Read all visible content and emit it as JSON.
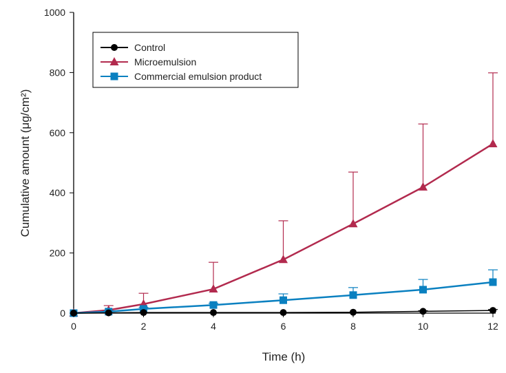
{
  "chart_data": {
    "type": "line",
    "title": "",
    "xlabel": "Time (h)",
    "ylabel": "Cumulative amount (μg/cm²)",
    "xlim": [
      0,
      12
    ],
    "ylim": [
      0,
      1000
    ],
    "xticks": [
      0,
      2,
      4,
      6,
      8,
      10,
      12
    ],
    "yticks": [
      0,
      200,
      400,
      600,
      800,
      1000
    ],
    "grid": false,
    "legend_position": "top-left",
    "x": [
      0,
      1,
      2,
      4,
      6,
      8,
      10,
      12
    ],
    "series": [
      {
        "name": "Control",
        "color": "#000000",
        "marker": "circle",
        "values": [
          0,
          1,
          2,
          2,
          2,
          3,
          6,
          9
        ],
        "error": [
          0,
          0,
          0,
          0,
          0,
          0,
          2,
          3
        ]
      },
      {
        "name": "Microemulsion",
        "color": "#b22a4e",
        "marker": "triangle",
        "values": [
          0,
          10,
          30,
          80,
          178,
          297,
          419,
          563
        ],
        "error": [
          0,
          15,
          36,
          89,
          129,
          172,
          210,
          236
        ]
      },
      {
        "name": "Commercial emulsion product",
        "color": "#0a80c0",
        "marker": "square",
        "values": [
          0,
          5,
          14,
          27,
          43,
          60,
          78,
          103
        ],
        "error": [
          0,
          3,
          5,
          6,
          21,
          25,
          34,
          41
        ]
      }
    ]
  }
}
